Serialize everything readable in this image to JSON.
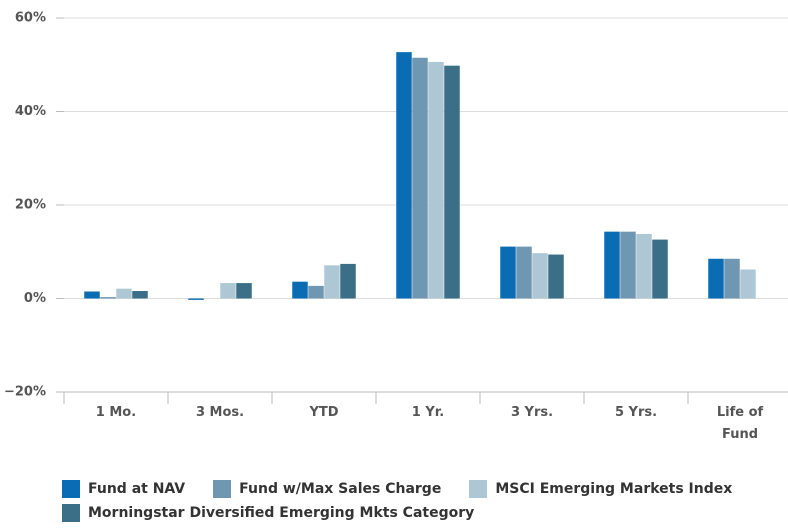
{
  "chart_data": {
    "type": "bar",
    "categories": [
      "1 Mo.",
      "3 Mos.",
      "YTD",
      "1 Yr.",
      "3 Yrs.",
      "5 Yrs.",
      "Life of Fund"
    ],
    "series": [
      {
        "name": "Fund at NAV",
        "color": "#0a6db3",
        "values": [
          1.5,
          -0.3,
          3.6,
          52.7,
          11.1,
          14.3,
          8.5
        ]
      },
      {
        "name": "Fund w/Max Sales Charge",
        "color": "#7097b1",
        "values": [
          0.3,
          null,
          2.7,
          51.5,
          11.1,
          14.3,
          8.5
        ]
      },
      {
        "name": "MSCI Emerging Markets Index",
        "color": "#aec7d5",
        "values": [
          2.1,
          3.3,
          7.1,
          50.6,
          9.7,
          13.8,
          6.2
        ]
      },
      {
        "name": "Morningstar Diversified Emerging Mkts Category",
        "color": "#3b6f88",
        "values": [
          1.6,
          3.3,
          7.4,
          49.8,
          9.4,
          12.6,
          null
        ]
      }
    ],
    "ylim": [
      -20,
      60
    ],
    "yticks": [
      {
        "value": -20,
        "label": "−20%"
      },
      {
        "value": 0,
        "label": "0%"
      },
      {
        "value": 20,
        "label": "20%"
      },
      {
        "value": 40,
        "label": "40%"
      },
      {
        "value": 60,
        "label": "60%"
      }
    ],
    "grid": true
  }
}
